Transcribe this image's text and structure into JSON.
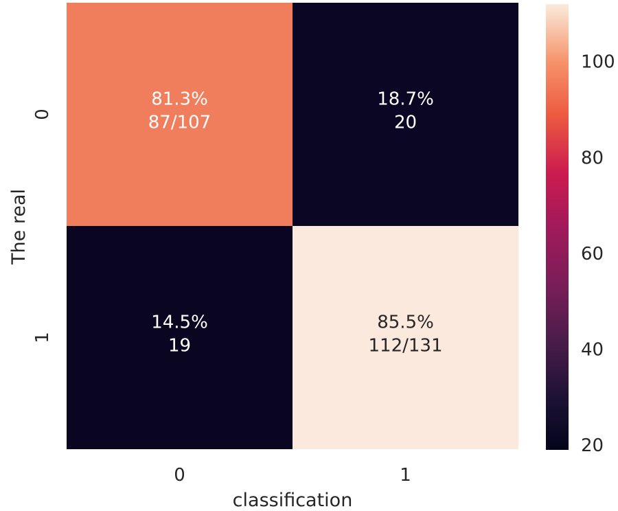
{
  "chart_data": {
    "type": "heatmap",
    "xlabel": "classification",
    "ylabel": "The real",
    "x_categories": [
      "0",
      "1"
    ],
    "y_categories": [
      "0",
      "1"
    ],
    "values": [
      [
        87,
        20
      ],
      [
        19,
        112
      ]
    ],
    "cell_labels": [
      [
        {
          "percent": "81.3%",
          "count": "87/107"
        },
        {
          "percent": "18.7%",
          "count": "20"
        }
      ],
      [
        {
          "percent": "14.5%",
          "count": "19"
        },
        {
          "percent": "85.5%",
          "count": "112/131"
        }
      ]
    ],
    "colorbar": {
      "min": 19,
      "max": 112,
      "ticks": [
        {
          "value": 20,
          "label": "20"
        },
        {
          "value": 40,
          "label": "40"
        },
        {
          "value": 60,
          "label": "60"
        },
        {
          "value": 80,
          "label": "80"
        },
        {
          "value": 100,
          "label": "100"
        }
      ],
      "colormap": "rocket"
    },
    "colors": {
      "cell_0_0": "#f07d5b",
      "cell_0_1": "#0b0623",
      "cell_1_0": "#0a0621",
      "cell_1_1": "#fae9dc"
    },
    "legend": "colorbar-right"
  }
}
